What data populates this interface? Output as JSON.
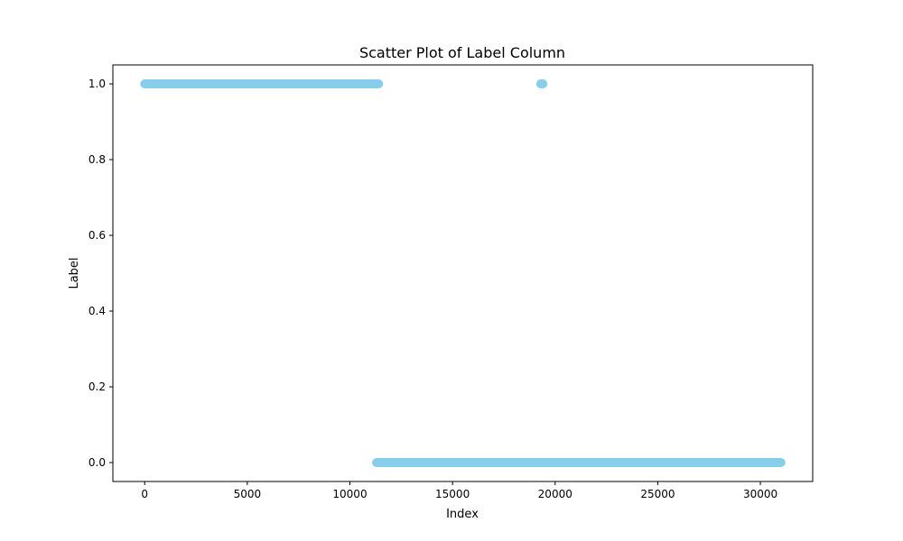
{
  "chart_data": {
    "type": "scatter",
    "title": "Scatter Plot of Label Column",
    "xlabel": "Index",
    "ylabel": "Label",
    "xlim": [
      -1550,
      32550
    ],
    "ylim": [
      -0.05,
      1.05
    ],
    "x_ticks": [
      0,
      5000,
      10000,
      15000,
      20000,
      25000,
      30000
    ],
    "x_tick_labels": [
      "0",
      "5000",
      "10000",
      "15000",
      "20000",
      "25000",
      "30000"
    ],
    "y_ticks": [
      0.0,
      0.2,
      0.4,
      0.6,
      0.8,
      1.0
    ],
    "y_tick_labels": [
      "0.0",
      "0.2",
      "0.4",
      "0.6",
      "0.8",
      "1.0"
    ],
    "grid": false,
    "legend": "none",
    "point_color": "#87CEEB",
    "series": [
      {
        "segments": [
          {
            "x_start": 0,
            "x_end": 11400,
            "y": 1.0
          },
          {
            "x_start": 19300,
            "x_end": 19400,
            "y": 1.0
          },
          {
            "x_start": 11300,
            "x_end": 31000,
            "y": 0.0
          }
        ]
      }
    ]
  }
}
